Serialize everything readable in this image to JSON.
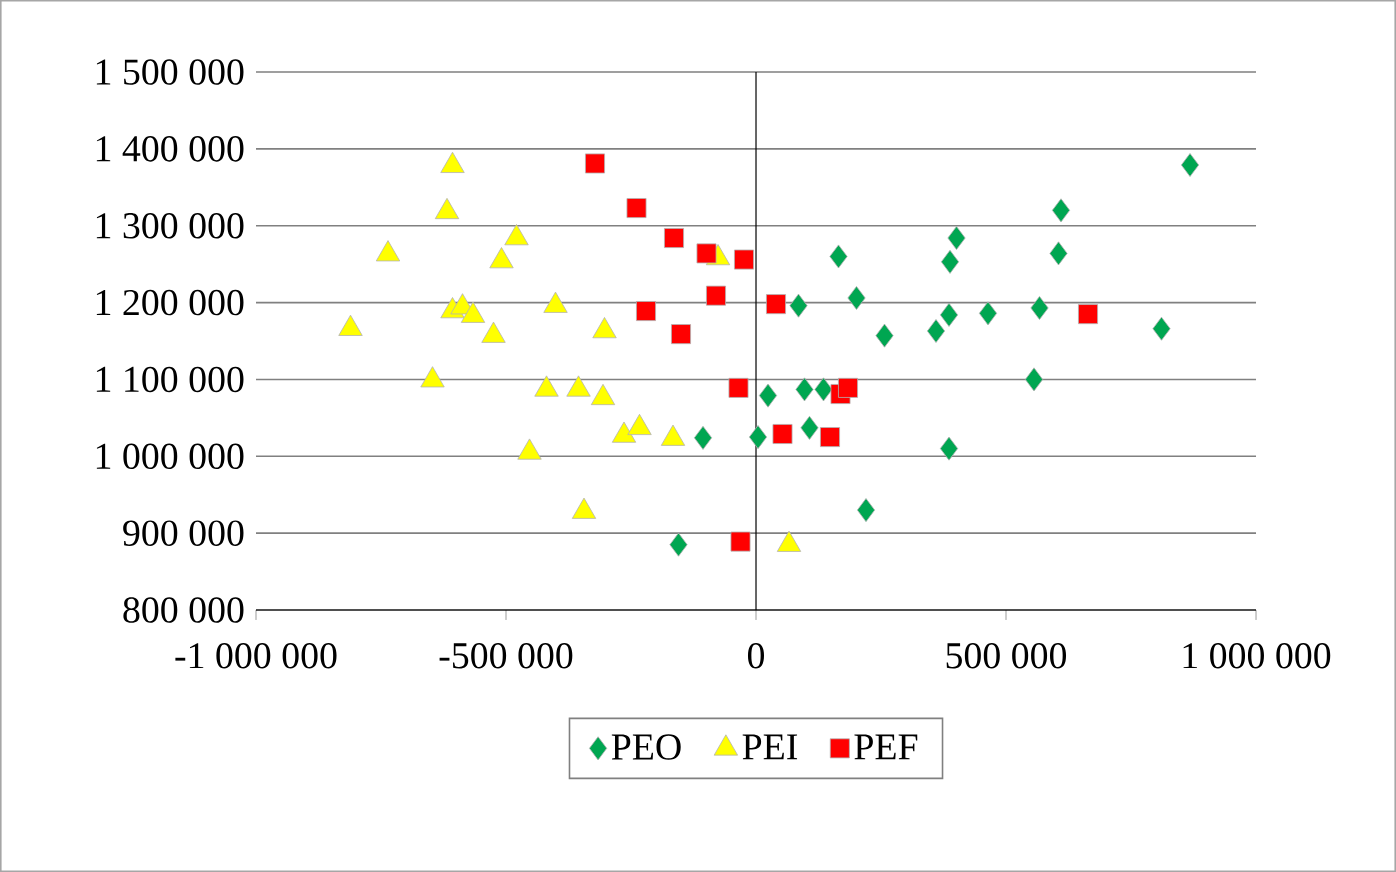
{
  "chart_data": {
    "type": "scatter",
    "xlim": [
      -1000000,
      1000000
    ],
    "ylim": [
      800000,
      1500000
    ],
    "xticks": [
      {
        "value": -1000000,
        "label": "-1 000 000"
      },
      {
        "value": -500000,
        "label": "-500 000"
      },
      0,
      {
        "value": 500000,
        "label": "500 000"
      },
      {
        "value": 1000000,
        "label": "1 000 000"
      }
    ],
    "yticks": [
      {
        "value": 800000,
        "label": "800 000"
      },
      {
        "value": 900000,
        "label": "900 000"
      },
      {
        "value": 1000000,
        "label": "1 000 000"
      },
      {
        "value": 1100000,
        "label": "1 100 000"
      },
      {
        "value": 1200000,
        "label": "1 200 000"
      },
      {
        "value": 1300000,
        "label": "1 300 000"
      },
      {
        "value": 1400000,
        "label": "1 400 000"
      },
      {
        "value": 1500000,
        "label": "1 500 000"
      }
    ],
    "grid": "y",
    "legend": "bottom",
    "series": [
      {
        "name": "PEO",
        "color": "#00a651",
        "marker": "diamond",
        "x": [
          868000,
          610000,
          605000,
          401000,
          388000,
          165000,
          85000,
          201000,
          257000,
          360000,
          386000,
          464000,
          567000,
          811000,
          556000,
          24000,
          97000,
          135000,
          4000,
          107000,
          386000,
          220000,
          -106000,
          -155000
        ],
        "values": [
          1379000,
          1320000,
          1264000,
          1284000,
          1253000,
          1260000,
          1196000,
          1206000,
          1157000,
          1163000,
          1184000,
          1186000,
          1193000,
          1166000,
          1100000,
          1079000,
          1087000,
          1087000,
          1025000,
          1037000,
          1010000,
          930000,
          1024000,
          885000
        ]
      },
      {
        "name": "PEI",
        "color": "#ffff00",
        "marker": "triangle",
        "x": [
          -607000,
          -618000,
          -736000,
          -479000,
          -509000,
          -811000,
          -607000,
          -587000,
          -566000,
          -525000,
          -401000,
          -303000,
          -647000,
          -419000,
          -355000,
          -306000,
          -264000,
          -233000,
          -166000,
          -453000,
          -344000,
          -76000,
          66000
        ],
        "values": [
          1378000,
          1318000,
          1263000,
          1284000,
          1254000,
          1166000,
          1189000,
          1194000,
          1183000,
          1157000,
          1196000,
          1163000,
          1099000,
          1087000,
          1087000,
          1076000,
          1027000,
          1037000,
          1023000,
          1005000,
          928000,
          1258000,
          885000
        ]
      },
      {
        "name": "PEF",
        "color": "#ff0000",
        "marker": "square",
        "x": [
          -322000,
          -239000,
          -164000,
          -99000,
          -24000,
          -80000,
          -220000,
          -150000,
          -35000,
          -31000,
          40000,
          664000,
          169000,
          184000,
          53000,
          148000
        ],
        "values": [
          1381000,
          1323000,
          1284000,
          1264000,
          1256000,
          1209000,
          1189000,
          1159000,
          1089000,
          889000,
          1198000,
          1185000,
          1081000,
          1089000,
          1029000,
          1025000
        ]
      }
    ]
  }
}
